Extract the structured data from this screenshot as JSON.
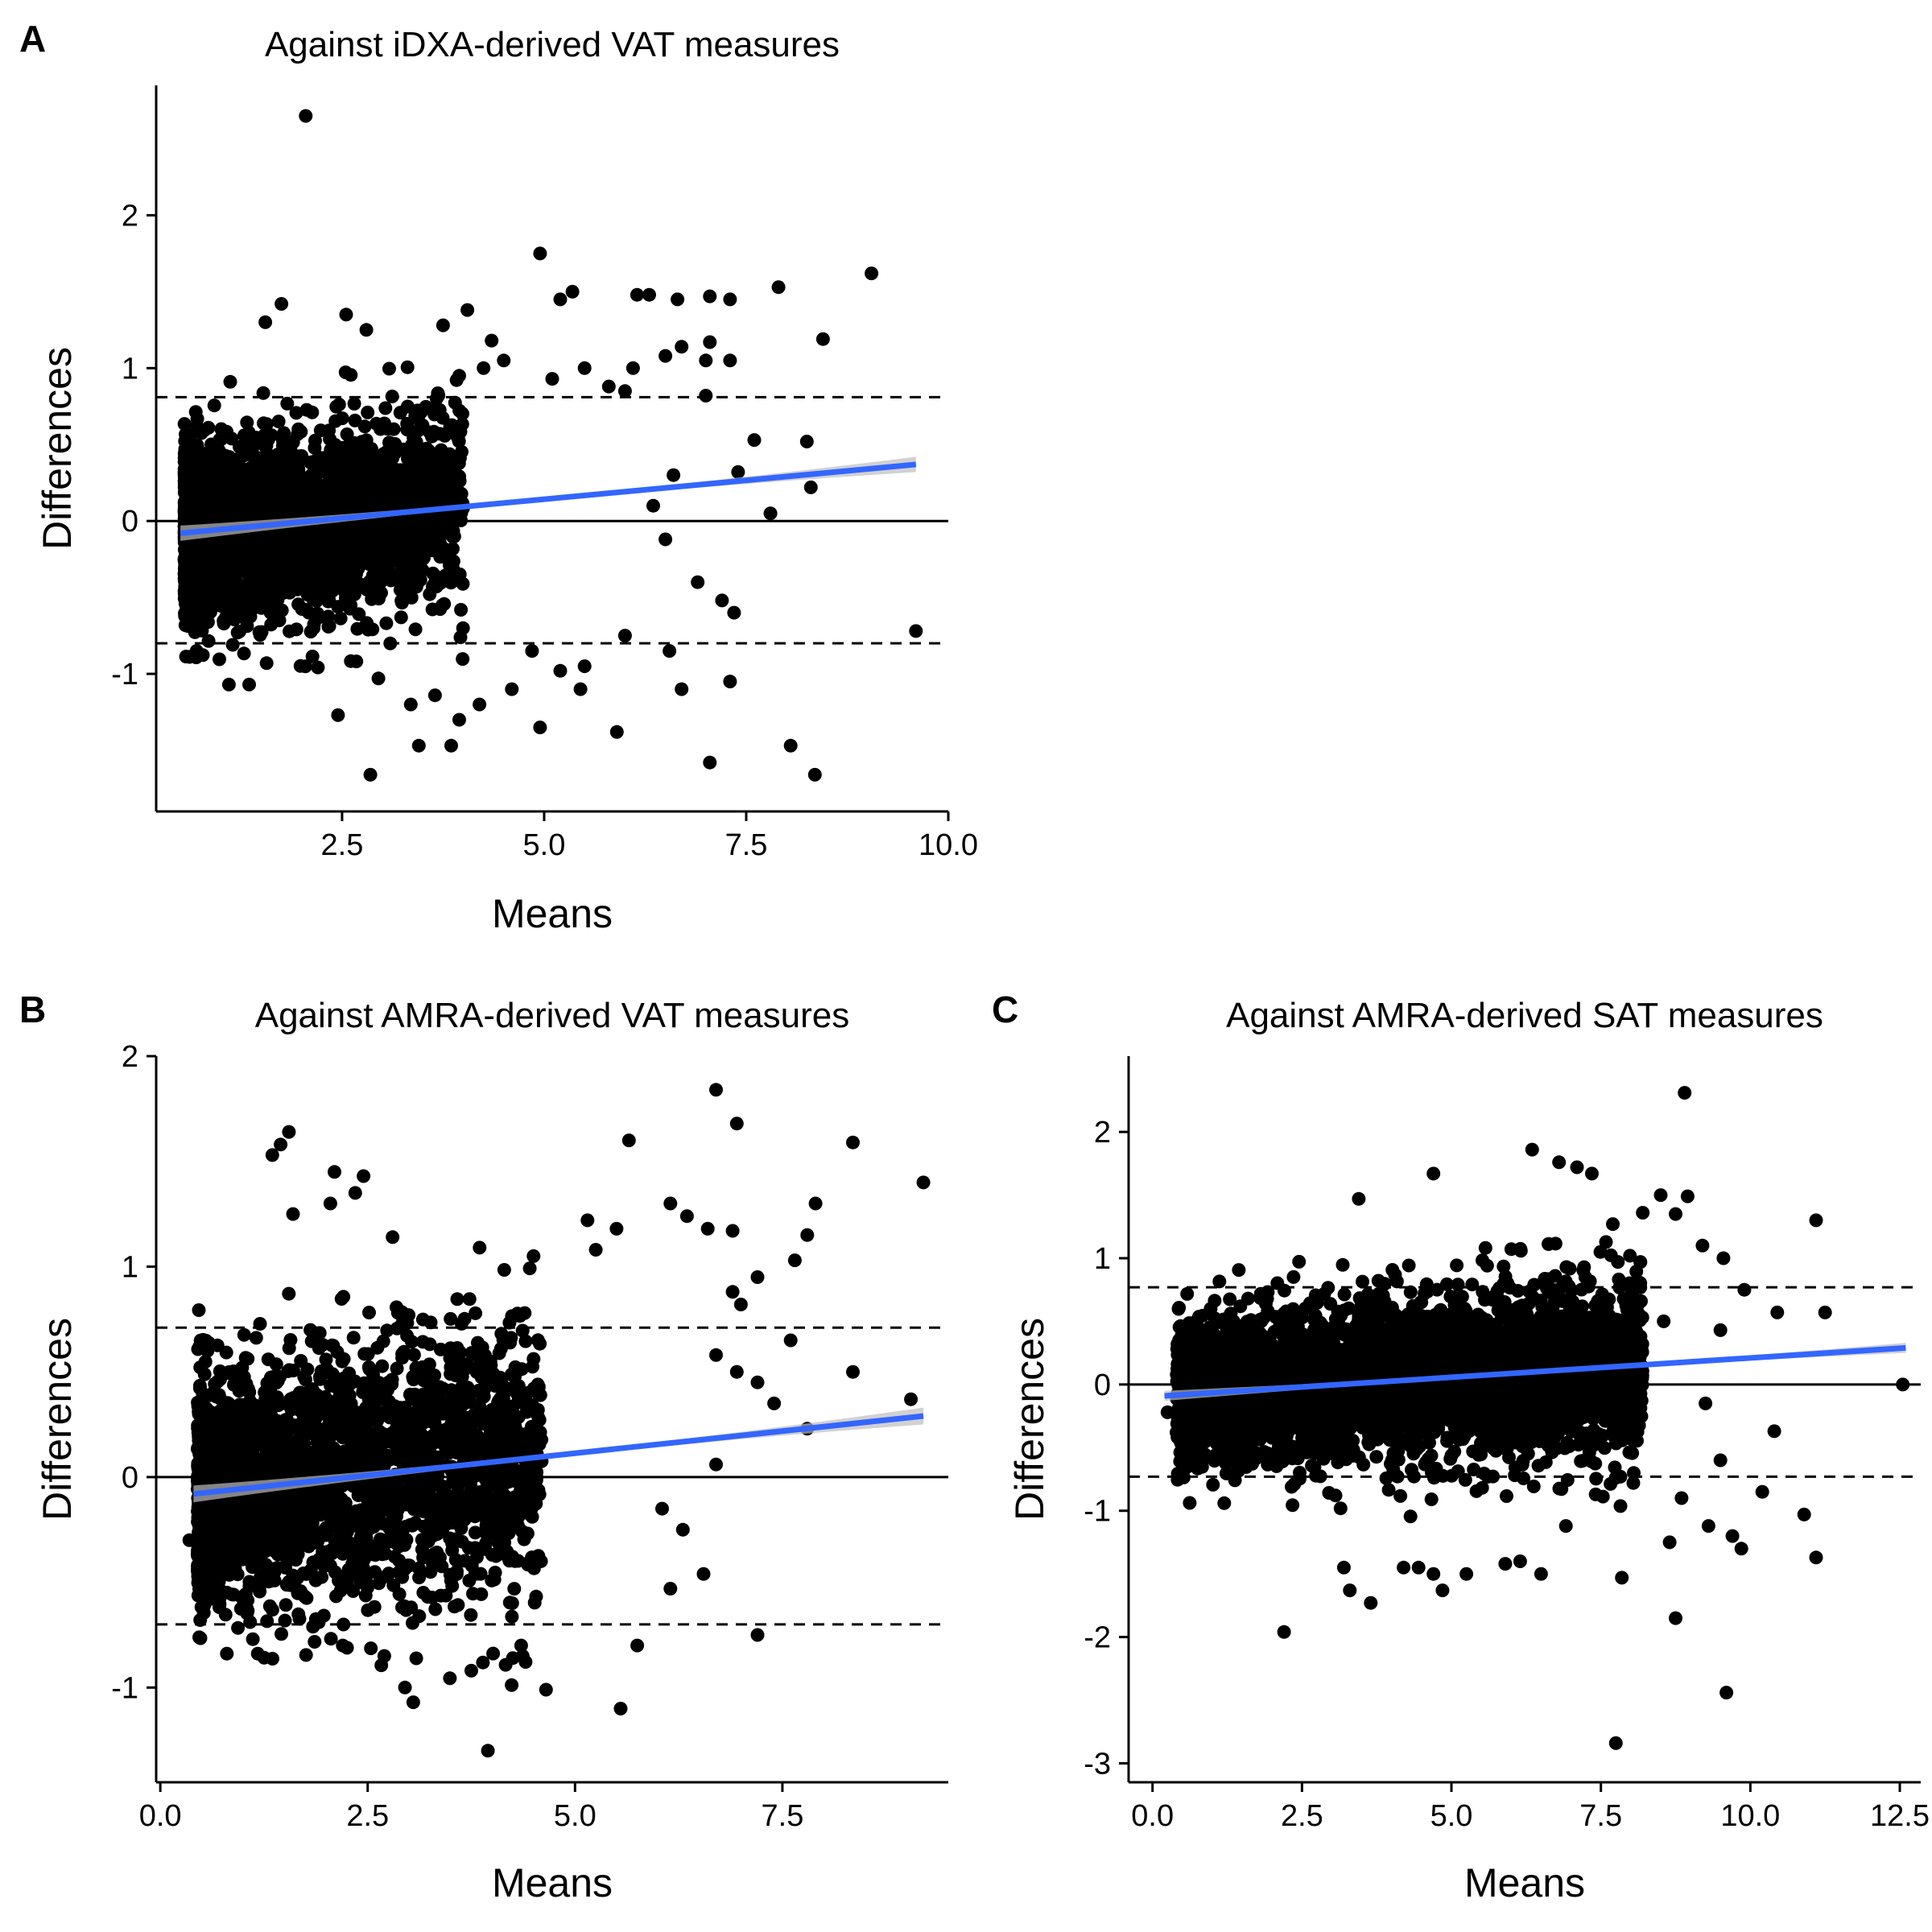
{
  "figure": {
    "type": "bland-altman multi-panel scatter",
    "panel_count": 3
  },
  "chart_data": [
    {
      "id": "A",
      "type": "scatter",
      "panel_label": "A",
      "title": "Against iDXA-derived VAT measures",
      "xlabel": "Means",
      "ylabel": "Differences",
      "xlim": [
        0.2,
        10.0
      ],
      "ylim": [
        -1.9,
        2.85
      ],
      "xticks": [
        2.5,
        5.0,
        7.5,
        10.0
      ],
      "xtick_labels": [
        "2.5",
        "5.0",
        "7.5",
        "10.0"
      ],
      "yticks": [
        -1,
        0,
        1,
        2
      ],
      "ytick_labels": [
        "-1",
        "0",
        "1",
        "2"
      ],
      "zero_line": 0,
      "limits_of_agreement": [
        0.81,
        -0.8
      ],
      "regression": {
        "x": [
          0.5,
          9.6
        ],
        "y": [
          -0.08,
          0.37
        ],
        "ci_halfwidth_end": 0.05,
        "color": "#3366ff"
      },
      "cloud": {
        "n": 2600,
        "seed": 11,
        "x_range": [
          0.55,
          4.0
        ],
        "x_skew": 1.8,
        "y_sd_base": 0.28,
        "y_sd_growth": 0.015,
        "slope": 0.05,
        "intercept": -0.1
      },
      "points": [
        [
          2.05,
          2.65
        ],
        [
          4.95,
          1.75
        ],
        [
          9.05,
          1.62
        ],
        [
          7.9,
          1.53
        ],
        [
          6.15,
          1.48
        ],
        [
          6.3,
          1.48
        ],
        [
          7.05,
          1.47
        ],
        [
          7.3,
          1.45
        ],
        [
          6.65,
          1.45
        ],
        [
          5.35,
          1.5
        ],
        [
          5.2,
          1.45
        ],
        [
          4.05,
          1.38
        ],
        [
          3.75,
          1.28
        ],
        [
          4.35,
          1.18
        ],
        [
          2.55,
          1.35
        ],
        [
          2.8,
          1.25
        ],
        [
          1.75,
          1.42
        ],
        [
          1.55,
          1.3
        ],
        [
          8.45,
          1.19
        ],
        [
          7.05,
          1.17
        ],
        [
          6.7,
          1.14
        ],
        [
          6.5,
          1.08
        ],
        [
          7.3,
          1.05
        ],
        [
          7.0,
          1.05
        ],
        [
          6.1,
          1.0
        ],
        [
          5.5,
          1.0
        ],
        [
          5.1,
          0.93
        ],
        [
          4.5,
          1.05
        ],
        [
          4.25,
          1.0
        ],
        [
          3.95,
          0.95
        ],
        [
          5.8,
          0.88
        ],
        [
          6.0,
          0.85
        ],
        [
          7.0,
          0.82
        ],
        [
          7.6,
          0.53
        ],
        [
          8.25,
          0.52
        ],
        [
          6.6,
          0.3
        ],
        [
          7.4,
          0.32
        ],
        [
          7.8,
          0.05
        ],
        [
          8.3,
          0.22
        ],
        [
          6.35,
          0.1
        ],
        [
          6.5,
          -0.12
        ],
        [
          6.9,
          -0.4
        ],
        [
          7.2,
          -0.52
        ],
        [
          7.35,
          -0.6
        ],
        [
          9.6,
          -0.72
        ],
        [
          6.55,
          -0.85
        ],
        [
          6.0,
          -0.75
        ],
        [
          5.5,
          -0.95
        ],
        [
          6.7,
          -1.1
        ],
        [
          7.3,
          -1.05
        ],
        [
          5.9,
          -1.38
        ],
        [
          7.05,
          -1.58
        ],
        [
          8.05,
          -1.47
        ],
        [
          8.35,
          -1.66
        ],
        [
          2.85,
          -1.66
        ],
        [
          3.45,
          -1.47
        ],
        [
          3.85,
          -1.47
        ],
        [
          4.95,
          -1.35
        ],
        [
          3.95,
          -1.3
        ],
        [
          2.45,
          -1.27
        ],
        [
          3.35,
          -1.2
        ],
        [
          4.2,
          -1.2
        ],
        [
          3.65,
          -1.14
        ],
        [
          4.6,
          -1.1
        ],
        [
          5.45,
          -1.1
        ],
        [
          1.1,
          -1.07
        ],
        [
          1.35,
          -1.07
        ],
        [
          2.95,
          -1.03
        ],
        [
          0.7,
          -0.85
        ],
        [
          5.2,
          -0.98
        ],
        [
          4.85,
          -0.85
        ]
      ]
    },
    {
      "id": "B",
      "type": "scatter",
      "panel_label": "B",
      "title": "Against AMRA-derived VAT measures",
      "xlabel": "Means",
      "ylabel": "Differences",
      "xlim": [
        -0.05,
        9.5
      ],
      "ylim": [
        -1.45,
        2.0
      ],
      "xticks": [
        0.0,
        2.5,
        5.0,
        7.5
      ],
      "xtick_labels": [
        "0.0",
        "2.5",
        "5.0",
        "7.5"
      ],
      "yticks": [
        -1,
        0,
        1,
        2
      ],
      "ytick_labels": [
        "-1",
        "0",
        "1",
        "2"
      ],
      "zero_line": 0,
      "limits_of_agreement": [
        0.71,
        -0.7
      ],
      "regression": {
        "x": [
          0.4,
          9.2
        ],
        "y": [
          -0.08,
          0.29
        ],
        "ci_halfwidth_end": 0.04,
        "color": "#3366ff"
      },
      "cloud": {
        "n": 2600,
        "seed": 23,
        "x_range": [
          0.45,
          4.6
        ],
        "x_skew": 1.6,
        "y_sd_base": 0.26,
        "y_sd_growth": 0.015,
        "slope": 0.045,
        "intercept": -0.1
      },
      "points": [
        [
          6.7,
          1.84
        ],
        [
          6.95,
          1.68
        ],
        [
          5.65,
          1.6
        ],
        [
          8.35,
          1.59
        ],
        [
          9.2,
          1.4
        ],
        [
          7.9,
          1.3
        ],
        [
          6.15,
          1.3
        ],
        [
          6.6,
          1.18
        ],
        [
          6.35,
          1.24
        ],
        [
          6.9,
          1.17
        ],
        [
          7.8,
          1.15
        ],
        [
          7.65,
          1.03
        ],
        [
          7.2,
          0.95
        ],
        [
          6.9,
          0.88
        ],
        [
          7.0,
          0.82
        ],
        [
          7.6,
          0.65
        ],
        [
          8.35,
          0.5
        ],
        [
          6.7,
          0.58
        ],
        [
          6.95,
          0.5
        ],
        [
          7.2,
          0.45
        ],
        [
          7.4,
          0.35
        ],
        [
          9.05,
          0.37
        ],
        [
          7.8,
          0.23
        ],
        [
          6.7,
          0.06
        ],
        [
          6.05,
          -0.15
        ],
        [
          6.3,
          -0.25
        ],
        [
          6.55,
          -0.46
        ],
        [
          6.15,
          -0.53
        ],
        [
          7.2,
          -0.75
        ],
        [
          5.75,
          -0.8
        ],
        [
          5.55,
          -1.1
        ],
        [
          4.65,
          -1.01
        ],
        [
          3.95,
          -1.3
        ],
        [
          3.05,
          -1.07
        ],
        [
          2.95,
          -1.0
        ],
        [
          3.75,
          -0.92
        ],
        [
          4.25,
          -0.86
        ],
        [
          4.35,
          -0.8
        ],
        [
          2.2,
          -0.8
        ],
        [
          2.7,
          -0.85
        ],
        [
          1.55,
          1.64
        ],
        [
          1.35,
          1.53
        ],
        [
          1.45,
          1.58
        ],
        [
          2.1,
          1.45
        ],
        [
          2.45,
          1.43
        ],
        [
          2.35,
          1.35
        ],
        [
          2.05,
          1.3
        ],
        [
          2.8,
          1.14
        ],
        [
          1.6,
          1.25
        ],
        [
          4.5,
          1.05
        ],
        [
          3.85,
          1.09
        ],
        [
          5.15,
          1.22
        ],
        [
          5.5,
          1.18
        ],
        [
          5.25,
          1.08
        ],
        [
          0.35,
          -0.3
        ],
        [
          0.5,
          -0.45
        ]
      ]
    },
    {
      "id": "C",
      "type": "scatter",
      "panel_label": "C",
      "title": "Against AMRA-derived SAT measures",
      "xlabel": "Means",
      "ylabel": "Differences",
      "xlim": [
        -0.4,
        12.85
      ],
      "ylim": [
        -3.15,
        2.6
      ],
      "xticks": [
        0.0,
        2.5,
        5.0,
        7.5,
        10.0,
        12.5
      ],
      "xtick_labels": [
        "0.0",
        "2.5",
        "5.0",
        "7.5",
        "10.0",
        "12.5"
      ],
      "yticks": [
        -3,
        -2,
        -1,
        0,
        1,
        2
      ],
      "ytick_labels": [
        "-3",
        "-2",
        "-1",
        "0",
        "1",
        "2"
      ],
      "zero_line": 0,
      "limits_of_agreement": [
        0.77,
        -0.73
      ],
      "regression": {
        "x": [
          0.2,
          12.6
        ],
        "y": [
          -0.09,
          0.29
        ],
        "ci_halfwidth_end": 0.04,
        "color": "#3366ff"
      },
      "cloud": {
        "n": 3200,
        "seed": 37,
        "x_range": [
          0.4,
          8.2
        ],
        "x_skew": 1.05,
        "y_sd_base": 0.3,
        "y_sd_growth": 0.01,
        "slope": 0.03,
        "intercept": -0.09
      },
      "points": [
        [
          8.9,
          2.31
        ],
        [
          6.35,
          1.86
        ],
        [
          6.8,
          1.76
        ],
        [
          7.1,
          1.72
        ],
        [
          7.35,
          1.67
        ],
        [
          4.7,
          1.67
        ],
        [
          8.95,
          1.49
        ],
        [
          8.5,
          1.5
        ],
        [
          3.45,
          1.47
        ],
        [
          8.2,
          1.36
        ],
        [
          8.75,
          1.35
        ],
        [
          11.1,
          1.3
        ],
        [
          7.7,
          1.27
        ],
        [
          9.2,
          1.1
        ],
        [
          9.55,
          1.0
        ],
        [
          9.9,
          0.75
        ],
        [
          10.45,
          0.57
        ],
        [
          11.25,
          0.57
        ],
        [
          8.55,
          0.5
        ],
        [
          9.5,
          0.43
        ],
        [
          9.25,
          -0.15
        ],
        [
          10.4,
          -0.37
        ],
        [
          9.5,
          -0.6
        ],
        [
          8.05,
          -0.7
        ],
        [
          10.2,
          -0.85
        ],
        [
          8.85,
          -0.9
        ],
        [
          10.9,
          -1.03
        ],
        [
          9.3,
          -1.12
        ],
        [
          9.7,
          -1.2
        ],
        [
          9.85,
          -1.3
        ],
        [
          11.1,
          -1.37
        ],
        [
          8.65,
          -1.25
        ],
        [
          7.85,
          -1.53
        ],
        [
          12.55,
          0.0
        ],
        [
          8.75,
          -1.85
        ],
        [
          9.6,
          -2.44
        ],
        [
          7.75,
          -2.84
        ],
        [
          2.2,
          -1.96
        ],
        [
          3.65,
          -1.73
        ],
        [
          3.3,
          -1.63
        ],
        [
          4.85,
          -1.63
        ],
        [
          4.2,
          -1.45
        ],
        [
          4.45,
          -1.45
        ],
        [
          4.7,
          -1.5
        ],
        [
          5.25,
          -1.5
        ],
        [
          6.5,
          -1.5
        ],
        [
          5.9,
          -1.42
        ],
        [
          6.15,
          -1.4
        ],
        [
          3.2,
          -1.45
        ],
        [
          1.2,
          -0.94
        ],
        [
          0.25,
          -0.22
        ]
      ]
    }
  ]
}
